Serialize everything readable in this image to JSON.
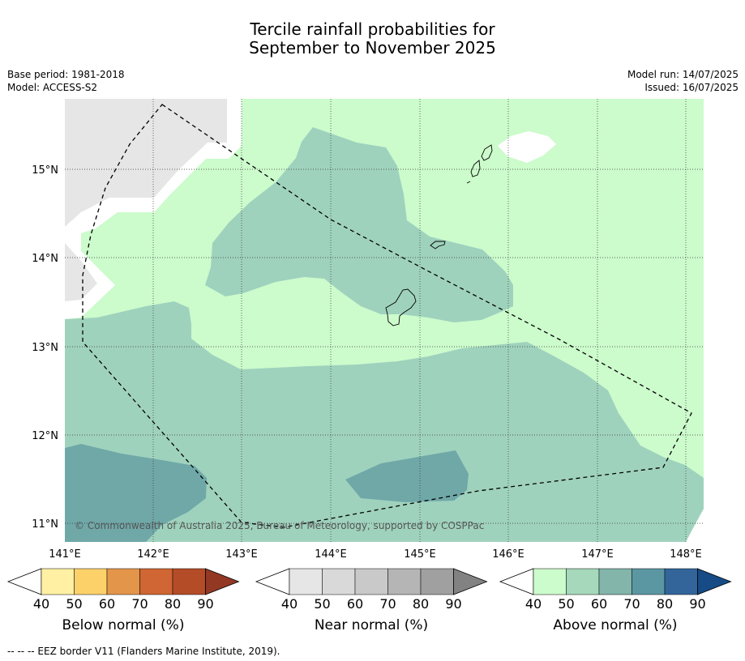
{
  "title": {
    "line1": "Tercile rainfall probabilities for",
    "line2": "September to November 2025"
  },
  "meta": {
    "base_period": "Base period: 1981-2018",
    "model": "Model: ACCESS-S2",
    "model_run": "Model run: 14/07/2025",
    "issued": "Issued: 16/07/2025"
  },
  "map": {
    "lat_labels": [
      "15°N",
      "14°N",
      "13°N",
      "12°N",
      "11°N"
    ],
    "lon_labels": [
      "141°E",
      "142°E",
      "143°E",
      "144°E",
      "145°E",
      "146°E",
      "147°E",
      "148°E"
    ],
    "copyright": "© Commonwealth of Australia 2025, Bureau of Meteorology, supported by COSPPac",
    "colors": {
      "no_data": "#e6e6e6",
      "above_40_50": "#ccfbcc",
      "above_50_60": "#9fd2bd",
      "above_60_70": "#70a8a8"
    }
  },
  "colorbars": [
    {
      "label": "Below normal (%)",
      "ticks": [
        "40",
        "50",
        "60",
        "70",
        "80",
        "90"
      ],
      "colors": [
        "#fff0a3",
        "#fdd16a",
        "#e3954a",
        "#cf6633",
        "#b44c28",
        "#923823"
      ]
    },
    {
      "label": "Near normal (%)",
      "ticks": [
        "40",
        "50",
        "60",
        "70",
        "80",
        "90"
      ],
      "colors": [
        "#e6e6e6",
        "#d9d9d9",
        "#c9c9c9",
        "#b5b5b5",
        "#a0a0a0",
        "#828282"
      ]
    },
    {
      "label": "Above normal (%)",
      "ticks": [
        "40",
        "50",
        "60",
        "70",
        "80",
        "90"
      ],
      "colors": [
        "#ccfbcc",
        "#a6d8bb",
        "#83b5aa",
        "#5b97a3",
        "#33659b",
        "#164b85"
      ]
    }
  ],
  "footer": "--  --  -- EEZ border V11 (Flanders Marine Institute, 2019)."
}
